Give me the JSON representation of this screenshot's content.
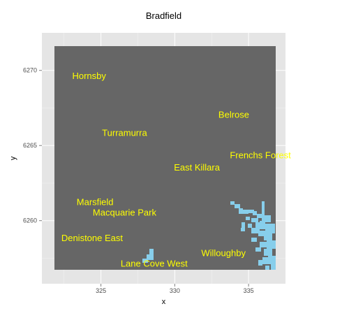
{
  "title": "Bradfield",
  "chart_data": {
    "type": "heatmap",
    "title": "Bradfield",
    "xlabel": "x",
    "ylabel": "y",
    "xlim": [
      321.0,
      337.5
    ],
    "ylim": [
      6255.8,
      6272.5
    ],
    "x_ticks": [
      325,
      330,
      335
    ],
    "y_ticks": [
      6260,
      6265,
      6270
    ],
    "x_tick_labels": [
      "325",
      "330",
      "335"
    ],
    "y_tick_labels": [
      "6260",
      "6265",
      "6270"
    ],
    "grid": true,
    "colors": {
      "panel_background": "#e5e5e5",
      "raster_fill": "#666666",
      "water_fill": "#87ceeb",
      "label_color": "#ffff00",
      "grid_color": "#f2f2f2"
    },
    "labels": [
      {
        "text": "Hornsby",
        "x": 324.2,
        "y": 6269.6
      },
      {
        "text": "Belrose",
        "x": 334.0,
        "y": 6267.0
      },
      {
        "text": "Turramurra",
        "x": 326.6,
        "y": 6265.8
      },
      {
        "text": "Frenchs Forest",
        "x": 335.8,
        "y": 6264.3
      },
      {
        "text": "East Killara",
        "x": 331.5,
        "y": 6263.5
      },
      {
        "text": "Marsfield",
        "x": 324.6,
        "y": 6261.2
      },
      {
        "text": "Macquarie Park",
        "x": 326.6,
        "y": 6260.5
      },
      {
        "text": "Denistone East",
        "x": 324.4,
        "y": 6258.8
      },
      {
        "text": "Willoughby",
        "x": 333.3,
        "y": 6257.8
      },
      {
        "text": "Lane Cove West",
        "x": 328.6,
        "y": 6257.1
      }
    ]
  }
}
